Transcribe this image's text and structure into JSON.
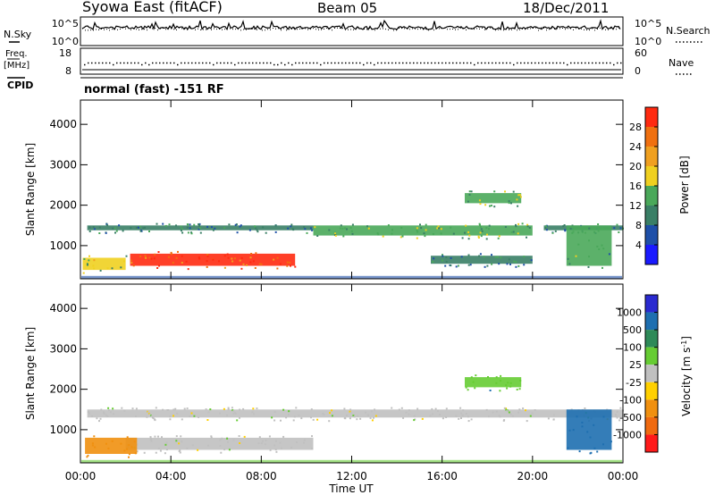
{
  "header": {
    "station": "Syowa East (fitACF)",
    "beam": "Beam 05",
    "date": "18/Dec/2011"
  },
  "noise_panel": {
    "left_label": "N.Sky",
    "right_label": "N.Search",
    "left_ticks": [
      "10^5",
      "10^0"
    ],
    "right_ticks": [
      "10^5",
      "10^0"
    ]
  },
  "freq_panel": {
    "left_label_1": "Freq.",
    "left_label_2": "[MHz]",
    "right_label": "Nave",
    "left_ticks": [
      "18",
      "8"
    ],
    "right_ticks": [
      "60",
      "0"
    ],
    "freq_mhz_approx": 12.3,
    "nave_approx": 28
  },
  "cpid": {
    "label": "CPID",
    "value": "normal (fast) -151 RF"
  },
  "colors": {
    "power_scale": [
      "#1a1aff",
      "#1e4fa8",
      "#3a7f66",
      "#4aa85a",
      "#f0d020",
      "#f0a020",
      "#f07010",
      "#ff2a10"
    ],
    "velocity_scale": [
      "#2a2ad0",
      "#1e6fb0",
      "#2e8a58",
      "#66cc33",
      "#c0c0c0",
      "#ffd000",
      "#f09010",
      "#f06a10",
      "#ff1a1a"
    ]
  },
  "chart_data": [
    {
      "type": "heatmap",
      "title": "",
      "xlabel": "",
      "ylabel": "Slant Range [km]",
      "x_range_hours": [
        0,
        24
      ],
      "y_range_km": [
        180,
        4600
      ],
      "y_ticks": [
        "4000",
        "3000",
        "2000",
        "1000"
      ],
      "colorbar": {
        "label": "Power [dB]",
        "ticks": [
          "28",
          "24",
          "20",
          "16",
          "12",
          "8",
          "4"
        ],
        "range": [
          0,
          32
        ]
      },
      "echo_bands": [
        {
          "x_start": 0.3,
          "x_end": 10.3,
          "range_km": [
            1380,
            1500
          ],
          "power_db": 10
        },
        {
          "x_start": 2.2,
          "x_end": 9.5,
          "range_km": [
            500,
            800
          ],
          "power_db": 28
        },
        {
          "x_start": 0.1,
          "x_end": 2.0,
          "range_km": [
            400,
            700
          ],
          "power_db": 16
        },
        {
          "x_start": 10.3,
          "x_end": 20.0,
          "range_km": [
            1250,
            1500
          ],
          "power_db": 14
        },
        {
          "x_start": 20.5,
          "x_end": 24.0,
          "range_km": [
            1380,
            1500
          ],
          "power_db": 10
        },
        {
          "x_start": 17.0,
          "x_end": 19.5,
          "range_km": [
            2050,
            2300
          ],
          "power_db": 14
        },
        {
          "x_start": 15.5,
          "x_end": 20.0,
          "range_km": [
            550,
            750
          ],
          "power_db": 10
        },
        {
          "x_start": 21.5,
          "x_end": 23.5,
          "range_km": [
            500,
            1500
          ],
          "power_db": 12
        }
      ]
    },
    {
      "type": "heatmap",
      "title": "",
      "xlabel": "Time UT",
      "ylabel": "Slant Range [km]",
      "x_range_hours": [
        0,
        24
      ],
      "y_range_km": [
        180,
        4600
      ],
      "y_ticks": [
        "4000",
        "3000",
        "2000",
        "1000"
      ],
      "x_ticks": [
        "00:00",
        "04:00",
        "08:00",
        "12:00",
        "16:00",
        "20:00",
        "00:00"
      ],
      "colorbar": {
        "label": "Velocity [m s^-1]",
        "ticks": [
          "1000",
          "500",
          "100",
          "25",
          "-25",
          "-100",
          "-500",
          "-1000"
        ]
      },
      "echo_bands": [
        {
          "x_start": 0.3,
          "x_end": 24.0,
          "range_km": [
            1300,
            1500
          ],
          "velocity": 0
        },
        {
          "x_start": 2.0,
          "x_end": 10.3,
          "range_km": [
            500,
            800
          ],
          "velocity": 0
        },
        {
          "x_start": 0.2,
          "x_end": 2.5,
          "range_km": [
            400,
            800
          ],
          "velocity": -250
        },
        {
          "x_start": 17.0,
          "x_end": 19.5,
          "range_km": [
            2050,
            2300
          ],
          "velocity": 80
        },
        {
          "x_start": 21.5,
          "x_end": 23.5,
          "range_km": [
            500,
            1500
          ],
          "velocity": 150
        }
      ]
    }
  ]
}
